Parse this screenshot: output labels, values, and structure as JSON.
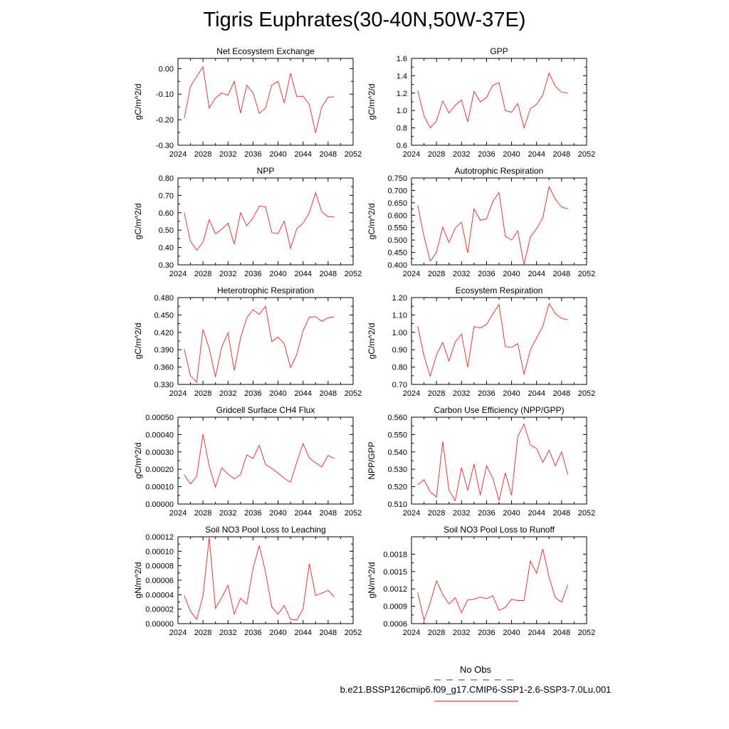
{
  "figure": {
    "title": "Tigris Euphrates(30-40N,50W-37E)",
    "legend": {
      "obs_label": "No Obs",
      "obs_color": "#5b5bd6",
      "case_label": "b.e21.BSSP126cmip6.f09_g17.CMIP6-SSP1-2.6-SSP3-7.0Lu.001",
      "case_color": "#e8363d"
    }
  },
  "chart_data": [
    {
      "type": "line",
      "title": "Net Ecosystem Exchange",
      "ylabel": "gC/m^2/d",
      "xlim": [
        2024,
        2052
      ],
      "xticks": [
        2024,
        2028,
        2032,
        2036,
        2040,
        2044,
        2048,
        2052
      ],
      "ylim": [
        -0.3,
        0.04
      ],
      "yticks": [
        0.0,
        -0.1,
        -0.2,
        -0.3
      ],
      "ytick_labels": [
        "0.00",
        "-0.10",
        "-0.20",
        "-0.30"
      ],
      "grid": false,
      "series": [
        {
          "x": [
            2025,
            2026,
            2027,
            2028,
            2029,
            2030,
            2031,
            2032,
            2033,
            2034,
            2035,
            2036,
            2037,
            2038,
            2039,
            2040,
            2041,
            2042,
            2043,
            2044,
            2045,
            2046,
            2047,
            2048,
            2049
          ],
          "values": [
            -0.195,
            -0.07,
            -0.03,
            0.007,
            -0.155,
            -0.115,
            -0.095,
            -0.105,
            -0.05,
            -0.175,
            -0.065,
            -0.095,
            -0.175,
            -0.155,
            -0.065,
            -0.05,
            -0.135,
            -0.018,
            -0.11,
            -0.108,
            -0.14,
            -0.252,
            -0.15,
            -0.112,
            -0.11
          ]
        }
      ]
    },
    {
      "type": "line",
      "title": "GPP",
      "ylabel": "gC/m^2/d",
      "xlim": [
        2024,
        2052
      ],
      "xticks": [
        2024,
        2028,
        2032,
        2036,
        2040,
        2044,
        2048,
        2052
      ],
      "ylim": [
        0.6,
        1.6
      ],
      "yticks": [
        0.6,
        0.8,
        1.0,
        1.2,
        1.4,
        1.6
      ],
      "ytick_labels": [
        "0.6",
        "0.8",
        "1.0",
        "1.2",
        "1.4",
        "1.6"
      ],
      "grid": false,
      "series": [
        {
          "x": [
            2025,
            2026,
            2027,
            2028,
            2029,
            2030,
            2031,
            2032,
            2033,
            2034,
            2035,
            2036,
            2037,
            2038,
            2039,
            2040,
            2041,
            2042,
            2043,
            2044,
            2045,
            2046,
            2047,
            2048,
            2049
          ],
          "values": [
            1.23,
            0.94,
            0.8,
            0.88,
            1.11,
            0.97,
            1.06,
            1.12,
            0.87,
            1.22,
            1.1,
            1.15,
            1.29,
            1.32,
            1.0,
            0.98,
            1.08,
            0.8,
            1.02,
            1.07,
            1.18,
            1.43,
            1.28,
            1.21,
            1.2
          ]
        }
      ]
    },
    {
      "type": "line",
      "title": "NPP",
      "ylabel": "gC/m^2/d",
      "xlim": [
        2024,
        2052
      ],
      "xticks": [
        2024,
        2028,
        2032,
        2036,
        2040,
        2044,
        2048,
        2052
      ],
      "ylim": [
        0.3,
        0.8
      ],
      "yticks": [
        0.3,
        0.4,
        0.5,
        0.6,
        0.7,
        0.8
      ],
      "ytick_labels": [
        "0.30",
        "0.40",
        "0.50",
        "0.60",
        "0.70",
        "0.80"
      ],
      "grid": false,
      "series": [
        {
          "x": [
            2025,
            2026,
            2027,
            2028,
            2029,
            2030,
            2031,
            2032,
            2033,
            2034,
            2035,
            2036,
            2037,
            2038,
            2039,
            2040,
            2041,
            2042,
            2043,
            2044,
            2045,
            2046,
            2047,
            2048,
            2049
          ],
          "values": [
            0.6,
            0.435,
            0.385,
            0.43,
            0.56,
            0.478,
            0.505,
            0.54,
            0.42,
            0.6,
            0.525,
            0.57,
            0.638,
            0.634,
            0.485,
            0.48,
            0.552,
            0.395,
            0.508,
            0.54,
            0.6,
            0.715,
            0.605,
            0.577,
            0.576
          ]
        }
      ]
    },
    {
      "type": "line",
      "title": "Autotrophic Respiration",
      "ylabel": "gC/m^2/d",
      "xlim": [
        2024,
        2052
      ],
      "xticks": [
        2024,
        2028,
        2032,
        2036,
        2040,
        2044,
        2048,
        2052
      ],
      "ylim": [
        0.4,
        0.75
      ],
      "yticks": [
        0.4,
        0.45,
        0.5,
        0.55,
        0.6,
        0.65,
        0.7,
        0.75
      ],
      "ytick_labels": [
        "0.400",
        "0.450",
        "0.500",
        "0.550",
        "0.600",
        "0.650",
        "0.700",
        "0.750"
      ],
      "grid": false,
      "series": [
        {
          "x": [
            2025,
            2026,
            2027,
            2028,
            2029,
            2030,
            2031,
            2032,
            2033,
            2034,
            2035,
            2036,
            2037,
            2038,
            2039,
            2040,
            2041,
            2042,
            2043,
            2044,
            2045,
            2046,
            2047,
            2048,
            2049
          ],
          "values": [
            0.64,
            0.515,
            0.415,
            0.45,
            0.552,
            0.49,
            0.548,
            0.572,
            0.448,
            0.626,
            0.58,
            0.585,
            0.655,
            0.692,
            0.515,
            0.5,
            0.537,
            0.4,
            0.512,
            0.545,
            0.59,
            0.715,
            0.665,
            0.633,
            0.625
          ]
        }
      ]
    },
    {
      "type": "line",
      "title": "Heterotrophic Respiration",
      "ylabel": "gC/m^2/d",
      "xlim": [
        2024,
        2052
      ],
      "xticks": [
        2024,
        2028,
        2032,
        2036,
        2040,
        2044,
        2048,
        2052
      ],
      "ylim": [
        0.33,
        0.48
      ],
      "yticks": [
        0.33,
        0.36,
        0.39,
        0.42,
        0.45,
        0.48
      ],
      "ytick_labels": [
        "0.330",
        "0.360",
        "0.390",
        "0.420",
        "0.450",
        "0.480"
      ],
      "grid": false,
      "series": [
        {
          "x": [
            2025,
            2026,
            2027,
            2028,
            2029,
            2030,
            2031,
            2032,
            2033,
            2034,
            2035,
            2036,
            2037,
            2038,
            2039,
            2040,
            2041,
            2042,
            2043,
            2044,
            2045,
            2046,
            2047,
            2048,
            2049
          ],
          "values": [
            0.391,
            0.345,
            0.334,
            0.425,
            0.392,
            0.343,
            0.395,
            0.419,
            0.354,
            0.41,
            0.445,
            0.459,
            0.451,
            0.465,
            0.404,
            0.412,
            0.4,
            0.359,
            0.382,
            0.423,
            0.446,
            0.447,
            0.439,
            0.445,
            0.447
          ]
        }
      ]
    },
    {
      "type": "line",
      "title": "Ecosystem Respiration",
      "ylabel": "gC/m^2/d",
      "xlim": [
        2024,
        2052
      ],
      "xticks": [
        2024,
        2028,
        2032,
        2036,
        2040,
        2044,
        2048,
        2052
      ],
      "ylim": [
        0.7,
        1.2
      ],
      "yticks": [
        0.7,
        0.8,
        0.9,
        1.0,
        1.1,
        1.2
      ],
      "ytick_labels": [
        "0.70",
        "0.80",
        "0.90",
        "1.00",
        "1.10",
        "1.20"
      ],
      "grid": false,
      "series": [
        {
          "x": [
            2025,
            2026,
            2027,
            2028,
            2029,
            2030,
            2031,
            2032,
            2033,
            2034,
            2035,
            2036,
            2037,
            2038,
            2039,
            2040,
            2041,
            2042,
            2043,
            2044,
            2045,
            2046,
            2047,
            2048,
            2049
          ],
          "values": [
            1.035,
            0.865,
            0.748,
            0.87,
            0.942,
            0.835,
            0.945,
            0.99,
            0.8,
            1.033,
            1.025,
            1.045,
            1.105,
            1.16,
            0.918,
            0.913,
            0.935,
            0.758,
            0.898,
            0.968,
            1.035,
            1.165,
            1.108,
            1.08,
            1.072
          ]
        }
      ]
    },
    {
      "type": "line",
      "title": "Gridcell Surface CH4 Flux",
      "ylabel": "gC/m^2/d",
      "xlim": [
        2024,
        2052
      ],
      "xticks": [
        2024,
        2028,
        2032,
        2036,
        2040,
        2044,
        2048,
        2052
      ],
      "ylim": [
        0.0,
        0.0005
      ],
      "yticks": [
        0.0,
        0.0001,
        0.0002,
        0.0003,
        0.0004,
        0.0005
      ],
      "ytick_labels": [
        "0.00000",
        "0.00010",
        "0.00020",
        "0.00030",
        "0.00040",
        "0.00050"
      ],
      "grid": false,
      "series": [
        {
          "x": [
            2025,
            2026,
            2027,
            2028,
            2029,
            2030,
            2031,
            2032,
            2033,
            2034,
            2035,
            2036,
            2037,
            2038,
            2039,
            2040,
            2041,
            2042,
            2043,
            2044,
            2045,
            2046,
            2047,
            2048,
            2049
          ],
          "values": [
            0.000168,
            0.000115,
            0.00016,
            0.000403,
            0.000218,
            9.8e-05,
            0.000208,
            0.000172,
            0.000145,
            0.00017,
            0.000283,
            0.000262,
            0.000338,
            0.000228,
            0.000205,
            0.000178,
            0.000148,
            0.000125,
            0.000242,
            0.000348,
            0.000265,
            0.000238,
            0.000213,
            0.00028,
            0.000262
          ]
        }
      ]
    },
    {
      "type": "line",
      "title": "Carbon Use Efficiency (NPP/GPP)",
      "ylabel": "NPP/GPP",
      "xlim": [
        2024,
        2052
      ],
      "xticks": [
        2024,
        2028,
        2032,
        2036,
        2040,
        2044,
        2048,
        2052
      ],
      "ylim": [
        0.51,
        0.56
      ],
      "yticks": [
        0.51,
        0.52,
        0.53,
        0.54,
        0.55,
        0.56
      ],
      "ytick_labels": [
        "0.510",
        "0.520",
        "0.530",
        "0.540",
        "0.550",
        "0.560"
      ],
      "grid": false,
      "series": [
        {
          "x": [
            2025,
            2026,
            2027,
            2028,
            2029,
            2030,
            2031,
            2032,
            2033,
            2034,
            2035,
            2036,
            2037,
            2038,
            2039,
            2040,
            2041,
            2042,
            2043,
            2044,
            2045,
            2046,
            2047,
            2048,
            2049
          ],
          "values": [
            0.521,
            0.524,
            0.517,
            0.514,
            0.546,
            0.518,
            0.512,
            0.531,
            0.518,
            0.533,
            0.515,
            0.532,
            0.525,
            0.512,
            0.528,
            0.515,
            0.549,
            0.556,
            0.544,
            0.542,
            0.534,
            0.541,
            0.532,
            0.54,
            0.527
          ]
        }
      ]
    },
    {
      "type": "line",
      "title": "Soil NO3 Pool Loss to Leaching",
      "ylabel": "gN/m^2/d",
      "xlim": [
        2024,
        2052
      ],
      "xticks": [
        2024,
        2028,
        2032,
        2036,
        2040,
        2044,
        2048,
        2052
      ],
      "ylim": [
        0.0,
        0.00012
      ],
      "yticks": [
        0.0,
        2e-05,
        4e-05,
        6e-05,
        8e-05,
        0.0001,
        0.00012
      ],
      "ytick_labels": [
        "0.00000",
        "0.00002",
        "0.00004",
        "0.00006",
        "0.00008",
        "0.00010",
        "0.00012"
      ],
      "grid": false,
      "series": [
        {
          "x": [
            2025,
            2026,
            2027,
            2028,
            2029,
            2030,
            2031,
            2032,
            2033,
            2034,
            2035,
            2036,
            2037,
            2038,
            2039,
            2040,
            2041,
            2042,
            2043,
            2044,
            2045,
            2046,
            2047,
            2048,
            2049
          ],
          "values": [
            3.9e-05,
            1.7e-05,
            6e-06,
            3.8e-05,
            0.000119,
            2.1e-05,
            3.6e-05,
            5.3e-05,
            1.3e-05,
            3.5e-05,
            2.7e-05,
            7.6e-05,
            0.000108,
            7.1e-05,
            2.3e-05,
            1.3e-05,
            2.5e-05,
            6e-06,
            5e-06,
            2e-05,
            8.3e-05,
            3.9e-05,
            4.2e-05,
            4.6e-05,
            3.7e-05
          ]
        }
      ]
    },
    {
      "type": "line",
      "title": "Soil NO3 Pool Loss to Runoff",
      "ylabel": "gN/m^2/d",
      "xlim": [
        2024,
        2052
      ],
      "xticks": [
        2024,
        2028,
        2032,
        2036,
        2040,
        2044,
        2048,
        2052
      ],
      "ylim": [
        0.0006,
        0.0021
      ],
      "yticks": [
        0.0006,
        0.0009,
        0.0012,
        0.0015,
        0.0018
      ],
      "ytick_labels": [
        "0.0006",
        "0.0009",
        "0.0012",
        "0.0015",
        "0.0018"
      ],
      "grid": false,
      "series": [
        {
          "x": [
            2025,
            2026,
            2027,
            2028,
            2029,
            2030,
            2031,
            2032,
            2033,
            2034,
            2035,
            2036,
            2037,
            2038,
            2039,
            2040,
            2041,
            2042,
            2043,
            2044,
            2045,
            2046,
            2047,
            2048,
            2049
          ],
          "values": [
            0.00114,
            0.00066,
            0.00096,
            0.00134,
            0.0011,
            0.00094,
            0.00105,
            0.00079,
            0.00101,
            0.00102,
            0.00106,
            0.00103,
            0.00108,
            0.00083,
            0.00088,
            0.00102,
            0.001,
            0.001,
            0.00168,
            0.00147,
            0.00189,
            0.0014,
            0.00105,
            0.00097,
            0.00127
          ]
        }
      ]
    }
  ]
}
